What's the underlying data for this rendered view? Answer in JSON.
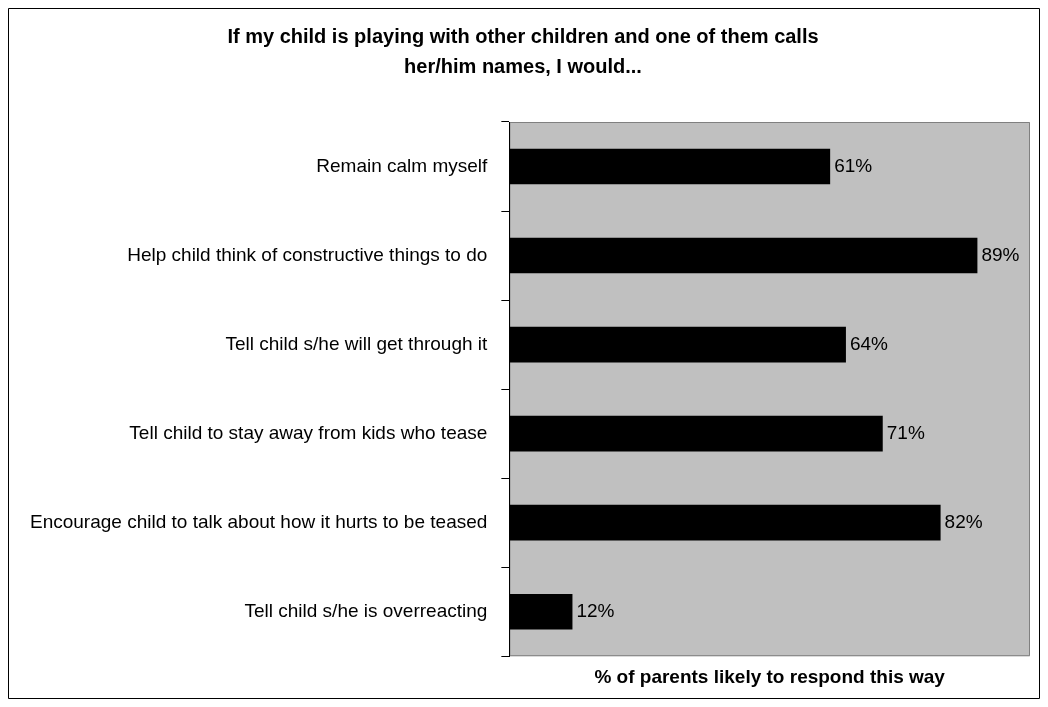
{
  "chart_data": {
    "type": "bar",
    "orientation": "horizontal",
    "title": "If my child is playing with other children and one of them calls her/him names, I would...",
    "xlabel": "% of parents likely to respond this way",
    "categories": [
      "Remain calm myself",
      "Help child think of constructive things to do",
      "Tell child s/he will get through it",
      "Tell child to stay away from kids who tease",
      "Encourage child to talk about how it hurts to be teased",
      "Tell child s/he is overreacting"
    ],
    "values": [
      61,
      89,
      64,
      71,
      82,
      12
    ],
    "value_labels": [
      "61%",
      "89%",
      "64%",
      "71%",
      "82%",
      "12%"
    ],
    "color": "#000000",
    "xlim": [
      0,
      99
    ],
    "tick_labels": "y",
    "grid": false,
    "legend": false
  }
}
